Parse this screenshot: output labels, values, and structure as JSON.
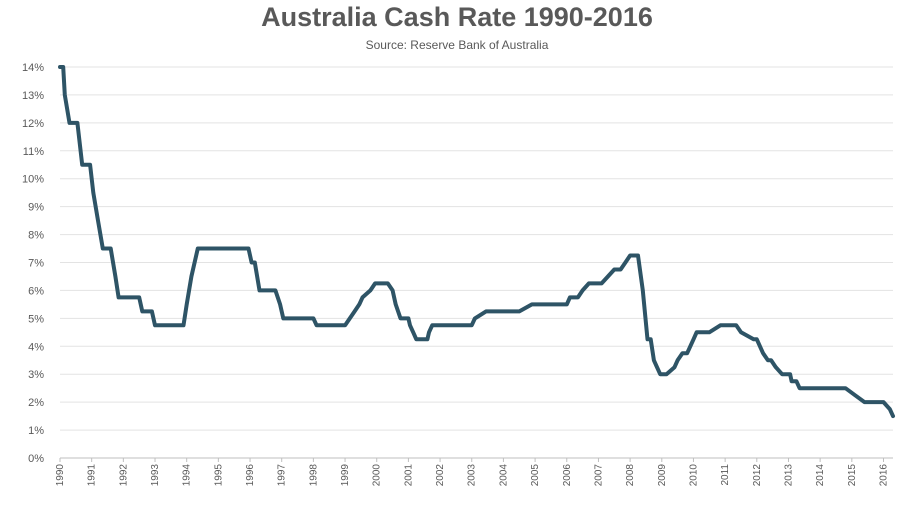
{
  "chart_data": {
    "type": "line",
    "title": "Australia Cash Rate 1990-2016",
    "subtitle": "Source: Reserve Bank of Australia",
    "xlabel": "",
    "ylabel": "",
    "xlim": [
      1990,
      2016.3
    ],
    "ylim": [
      0,
      14
    ],
    "y_ticks": [
      "0%",
      "1%",
      "2%",
      "3%",
      "4%",
      "5%",
      "6%",
      "7%",
      "8%",
      "9%",
      "10%",
      "11%",
      "12%",
      "13%",
      "14%"
    ],
    "x_ticks": [
      "1990",
      "1991",
      "1992",
      "1993",
      "1994",
      "1995",
      "1996",
      "1997",
      "1998",
      "1999",
      "2000",
      "2001",
      "2002",
      "2003",
      "2004",
      "2005",
      "2006",
      "2007",
      "2008",
      "2009",
      "2010",
      "2011",
      "2012",
      "2013",
      "2014",
      "2015",
      "2016"
    ],
    "grid": true,
    "legend": "none",
    "color": "#2e5466",
    "series": [
      {
        "x": [
          1990.0,
          1990.1,
          1990.15,
          1990.3,
          1990.55,
          1990.7,
          1990.95,
          1991.05,
          1991.2,
          1991.35,
          1991.6,
          1991.75,
          1991.85,
          1992.0,
          1992.5,
          1992.6,
          1992.9,
          1993.0,
          1993.9,
          1994.0,
          1994.15,
          1994.35,
          1995.0,
          1995.95,
          1996.05,
          1996.15,
          1996.3,
          1996.8,
          1996.95,
          1997.05,
          1997.15,
          1998.0,
          1998.1,
          1998.9,
          1999.0,
          1999.15,
          1999.3,
          1999.45,
          1999.55,
          1999.8,
          1999.95,
          2000.35,
          2000.5,
          2000.6,
          2000.75,
          2001.0,
          2001.05,
          2001.15,
          2001.25,
          2001.3,
          2001.6,
          2001.65,
          2001.75,
          2002.0,
          2002.3,
          2002.5,
          2003.0,
          2003.1,
          2003.45,
          2004.0,
          2004.5,
          2004.9,
          2005.0,
          2005.5,
          2005.75,
          2006.0,
          2006.1,
          2006.35,
          2006.5,
          2006.7,
          2006.8,
          2007.0,
          2007.1,
          2007.3,
          2007.5,
          2007.6,
          2007.7,
          2007.85,
          2008.0,
          2008.05,
          2008.15,
          2008.25,
          2008.4,
          2008.55,
          2008.65,
          2008.75,
          2008.85,
          2008.95,
          2009.05,
          2009.15,
          2009.4,
          2009.5,
          2009.65,
          2009.8,
          2009.9,
          2010.0,
          2010.1,
          2010.25,
          2010.5,
          2010.85,
          2011.0,
          2011.25,
          2011.35,
          2011.5,
          2011.9,
          2012.0,
          2012.2,
          2012.35,
          2012.45,
          2012.6,
          2012.8,
          2012.95,
          2013.05,
          2013.1,
          2013.25,
          2013.35,
          2013.5,
          2014.0,
          2014.6,
          2014.8,
          2015.1,
          2015.4,
          2015.6,
          2016.0,
          2016.2,
          2016.3
        ],
        "y": [
          14.0,
          14.0,
          13.0,
          12.0,
          12.0,
          10.5,
          10.5,
          9.5,
          8.5,
          7.5,
          7.5,
          6.5,
          5.75,
          5.75,
          5.75,
          5.25,
          5.25,
          4.75,
          4.75,
          5.5,
          6.5,
          7.5,
          7.5,
          7.5,
          7.0,
          7.0,
          6.0,
          6.0,
          5.5,
          5.0,
          5.0,
          5.0,
          4.75,
          4.75,
          4.75,
          5.0,
          5.25,
          5.5,
          5.75,
          6.0,
          6.25,
          6.25,
          6.0,
          5.5,
          5.0,
          5.0,
          4.75,
          4.5,
          4.25,
          4.25,
          4.25,
          4.5,
          4.75,
          4.75,
          4.75,
          4.75,
          4.75,
          5.0,
          5.25,
          5.25,
          5.25,
          5.5,
          5.5,
          5.5,
          5.5,
          5.5,
          5.75,
          5.75,
          6.0,
          6.25,
          6.25,
          6.25,
          6.25,
          6.5,
          6.75,
          6.75,
          6.75,
          7.0,
          7.25,
          7.25,
          7.25,
          7.25,
          6.0,
          4.25,
          4.25,
          3.5,
          3.25,
          3.0,
          3.0,
          3.0,
          3.25,
          3.5,
          3.75,
          3.75,
          4.0,
          4.25,
          4.5,
          4.5,
          4.5,
          4.75,
          4.75,
          4.75,
          4.75,
          4.5,
          4.25,
          4.25,
          3.75,
          3.5,
          3.5,
          3.25,
          3.0,
          3.0,
          3.0,
          2.75,
          2.75,
          2.5,
          2.5,
          2.5,
          2.5,
          2.5,
          2.25,
          2.0,
          2.0,
          2.0,
          1.75,
          1.5
        ]
      }
    ]
  }
}
